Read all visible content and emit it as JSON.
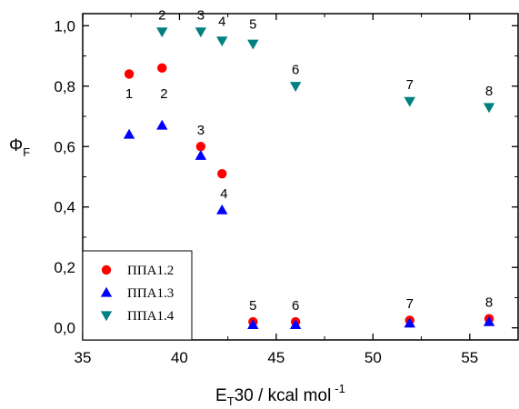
{
  "chart_data": {
    "type": "scatter",
    "title": "",
    "xlabel": "E",
    "xlabel_sub": "T",
    "xlabel_rest": "30 / kcal mol",
    "xlabel_sup": "-1",
    "ylabel": "Φ",
    "ylabel_sub": "F",
    "xlim": [
      35,
      57.5
    ],
    "ylim": [
      -0.04,
      1.04
    ],
    "xticks": [
      35,
      40,
      45,
      50,
      55
    ],
    "xtick_labels": [
      "35",
      "40",
      "45",
      "50",
      "55"
    ],
    "yticks": [
      0.0,
      0.2,
      0.4,
      0.6,
      0.8,
      1.0
    ],
    "ytick_labels": [
      "0,0",
      "0,2",
      "0,4",
      "0,6",
      "0,8",
      "1,0"
    ],
    "grid": false,
    "legend_placement": "bottom-left",
    "series": [
      {
        "name": "ППА1.2",
        "marker": "circle",
        "color": "#ff0000",
        "x": [
          37.4,
          39.1,
          41.1,
          42.2,
          43.8,
          46.0,
          51.9,
          56.0
        ],
        "y": [
          0.84,
          0.86,
          0.6,
          0.51,
          0.02,
          0.02,
          0.025,
          0.03
        ]
      },
      {
        "name": "ППА1.3",
        "marker": "triangle-up",
        "color": "#0000ff",
        "x": [
          37.4,
          39.1,
          41.1,
          42.2,
          43.8,
          46.0,
          51.9,
          56.0
        ],
        "y": [
          0.64,
          0.67,
          0.57,
          0.39,
          0.01,
          0.01,
          0.015,
          0.02
        ]
      },
      {
        "name": "ППА1.4",
        "marker": "triangle-down",
        "color": "#008080",
        "x": [
          39.1,
          41.1,
          42.2,
          43.8,
          46.0,
          51.9,
          56.0
        ],
        "y": [
          0.98,
          0.98,
          0.95,
          0.94,
          0.8,
          0.75,
          0.73
        ]
      }
    ],
    "annotations": [
      {
        "text": "1",
        "x": 37.4,
        "y": 0.76
      },
      {
        "text": "2",
        "x": 39.2,
        "y": 0.76
      },
      {
        "text": "2",
        "x": 39.1,
        "y": 1.02
      },
      {
        "text": "3",
        "x": 41.1,
        "y": 1.02
      },
      {
        "text": "4",
        "x": 42.2,
        "y": 1.0
      },
      {
        "text": "5",
        "x": 43.8,
        "y": 0.99
      },
      {
        "text": "6",
        "x": 46.0,
        "y": 0.84
      },
      {
        "text": "7",
        "x": 51.9,
        "y": 0.79
      },
      {
        "text": "8",
        "x": 56.0,
        "y": 0.77
      },
      {
        "text": "3",
        "x": 41.1,
        "y": 0.64
      },
      {
        "text": "4",
        "x": 42.3,
        "y": 0.43
      },
      {
        "text": "5",
        "x": 43.8,
        "y": 0.06
      },
      {
        "text": "6",
        "x": 46.0,
        "y": 0.06
      },
      {
        "text": "7",
        "x": 51.9,
        "y": 0.065
      },
      {
        "text": "8",
        "x": 56.0,
        "y": 0.07
      }
    ]
  }
}
